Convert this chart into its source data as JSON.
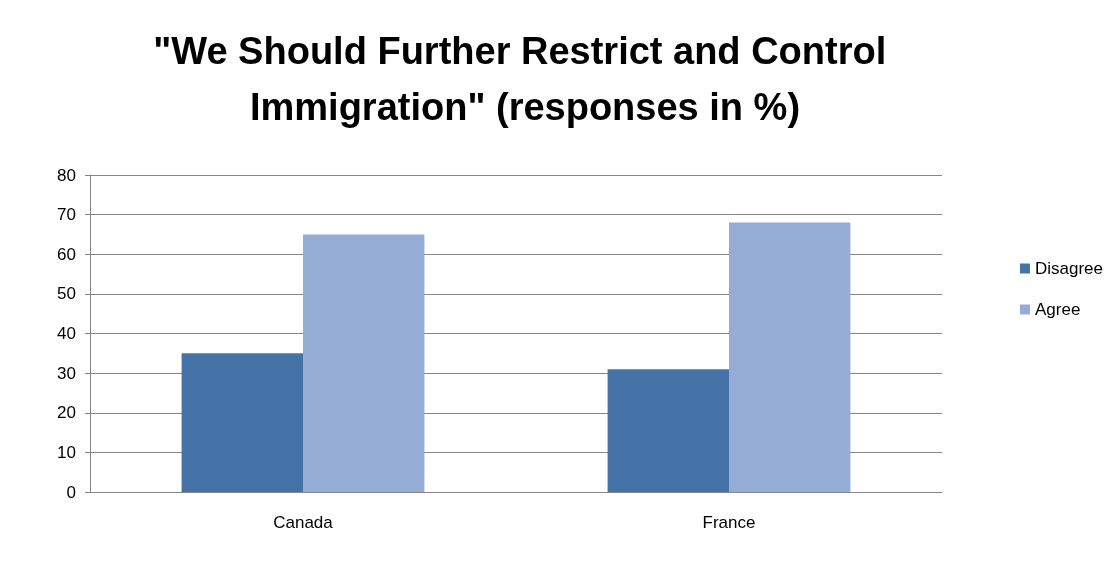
{
  "chart_data": {
    "type": "bar",
    "title": "\"We Should Further Restrict and Control Immigration\" (responses in %)",
    "categories": [
      "Canada",
      "France"
    ],
    "series": [
      {
        "name": "Disagree",
        "color": "#4573a7",
        "values": [
          35,
          31
        ]
      },
      {
        "name": "Agree",
        "color": "#95acd4",
        "values": [
          65,
          68
        ]
      }
    ],
    "ylim": [
      0,
      80
    ],
    "yticks": [
      0,
      10,
      20,
      30,
      40,
      50,
      60,
      70,
      80
    ],
    "grid": "y",
    "legend": "right"
  }
}
